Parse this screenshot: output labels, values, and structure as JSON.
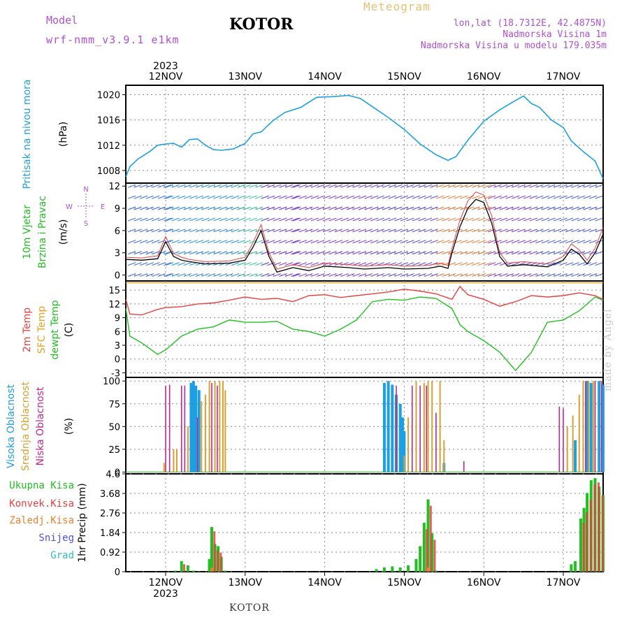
{
  "header": {
    "model_label": "Model",
    "model_version": "wrf-nmm_v3.9.1 e1km",
    "title": "KOTOR",
    "meteogram_label": "Meteogram",
    "lonlat": "lon,lat (18.7312E, 42.4875N)",
    "elevation": "Nadmorska Visina 1m",
    "model_elevation": "Nadmorska Visina u modelu 179.035m"
  },
  "footer": {
    "title": "KOTOR",
    "credit": "made by Angel"
  },
  "x_axis": {
    "year_label": "2023",
    "day_labels": [
      "12NOV",
      "13NOV",
      "14NOV",
      "15NOV",
      "16NOV",
      "17NOV"
    ]
  },
  "colors": {
    "pressure": "#1ea0e0",
    "temp_2m": "#e84040",
    "temp_sfc": "#e8a020",
    "dewpoint": "#20c020",
    "cloud_high": "#1ea0e0",
    "cloud_mid": "#d8a030",
    "cloud_low": "#c02890",
    "precip_total": "#20c020",
    "precip_conv": "#e84040",
    "wind_speed_line": "#000000",
    "wind_gust": "#e84040"
  },
  "chart_data": [
    {
      "type": "line",
      "panel": "pressure",
      "ylabel_main": "Pritisak na nivou mora",
      "ylabel_unit": "(hPa)",
      "ylim": [
        1006,
        1021.5
      ],
      "yticks": [
        "1008",
        "1012",
        "1016",
        "1020"
      ],
      "x_days": [
        -0.5,
        -0.45,
        -0.35,
        -0.2,
        -0.1,
        0.0,
        0.1,
        0.2,
        0.3,
        0.4,
        0.5,
        0.6,
        0.7,
        0.85,
        1.0,
        1.1,
        1.2,
        1.35,
        1.5,
        1.7,
        1.9,
        2.1,
        2.3,
        2.45,
        2.6,
        2.8,
        3.0,
        3.2,
        3.4,
        3.55,
        3.65,
        3.8,
        4.0,
        4.2,
        4.4,
        4.5,
        4.6,
        4.7,
        4.85,
        5.0,
        5.1,
        5.25,
        5.4,
        5.5
      ],
      "series": [
        {
          "values": [
            1007.0,
            1008.6,
            1009.8,
            1011.0,
            1012.0,
            1012.2,
            1012.3,
            1011.7,
            1012.9,
            1013.0,
            1012.0,
            1011.3,
            1011.2,
            1011.4,
            1012.3,
            1013.8,
            1014.1,
            1015.9,
            1017.2,
            1018.0,
            1019.6,
            1019.7,
            1019.9,
            1019.4,
            1018.1,
            1016.4,
            1014.5,
            1012.2,
            1010.5,
            1009.6,
            1010.2,
            1012.8,
            1015.8,
            1017.6,
            1019.1,
            1019.8,
            1018.6,
            1018.0,
            1016.0,
            1014.8,
            1012.7,
            1011.0,
            1009.5,
            1006.7
          ]
        }
      ]
    },
    {
      "type": "line",
      "panel": "wind",
      "ylabel_main": "10m Vjetar",
      "ylabel_sub": "Brzina i Pravac",
      "ylabel_unit": "(m/s)",
      "compass": {
        "n": "N",
        "w": "W",
        "e": "E",
        "s": "S"
      },
      "ylim": [
        -0.8,
        12.4
      ],
      "yticks": [
        "0",
        "3",
        "6",
        "9",
        "12"
      ],
      "x_days": [
        -0.5,
        -0.3,
        -0.1,
        0.0,
        0.1,
        0.2,
        0.3,
        0.5,
        0.8,
        1.0,
        1.1,
        1.2,
        1.3,
        1.4,
        1.6,
        1.8,
        2.0,
        2.3,
        2.5,
        2.8,
        3.0,
        3.3,
        3.45,
        3.55,
        3.6,
        3.7,
        3.8,
        3.9,
        4.0,
        4.1,
        4.2,
        4.3,
        4.5,
        4.8,
        5.0,
        5.1,
        5.2,
        5.3,
        5.4,
        5.5
      ],
      "series": [
        {
          "values": [
            2.1,
            2.0,
            2.2,
            4.5,
            2.5,
            2.0,
            1.8,
            1.5,
            1.6,
            2.0,
            3.8,
            6.0,
            2.5,
            0.4,
            1.0,
            0.6,
            1.2,
            1.0,
            0.8,
            1.0,
            0.8,
            0.9,
            1.2,
            0.9,
            3.0,
            6.5,
            9.0,
            10.2,
            9.8,
            7.0,
            2.5,
            1.2,
            1.4,
            1.1,
            2.0,
            3.5,
            2.8,
            1.5,
            3.0,
            5.5
          ]
        },
        {
          "values": [
            2.4,
            2.3,
            2.6,
            5.2,
            2.9,
            2.4,
            2.1,
            1.8,
            1.9,
            2.4,
            4.4,
            6.8,
            3.0,
            0.8,
            1.4,
            1.0,
            1.6,
            1.4,
            1.2,
            1.4,
            1.2,
            1.3,
            1.6,
            1.3,
            3.6,
            7.4,
            10.0,
            11.2,
            10.8,
            8.0,
            3.0,
            1.6,
            1.8,
            1.5,
            2.5,
            4.2,
            3.4,
            2.0,
            3.6,
            6.4
          ]
        }
      ]
    },
    {
      "type": "line",
      "panel": "temperature",
      "ylabel_a": "2m Temp",
      "ylabel_b": "SFC Temp",
      "ylabel_c": "dewpt Temp",
      "ylabel_unit": "(C)",
      "ylim": [
        -4,
        17
      ],
      "yticks": [
        "-3",
        "0",
        "3",
        "6",
        "9",
        "12",
        "15"
      ],
      "x_days": [
        -0.5,
        -0.45,
        -0.3,
        -0.1,
        0.0,
        0.2,
        0.4,
        0.6,
        0.8,
        1.0,
        1.2,
        1.4,
        1.6,
        1.8,
        2.0,
        2.2,
        2.4,
        2.6,
        2.8,
        3.0,
        3.2,
        3.4,
        3.6,
        3.7,
        3.8,
        4.0,
        4.2,
        4.4,
        4.6,
        4.8,
        5.0,
        5.2,
        5.4,
        5.5
      ],
      "series": [
        {
          "name": "2m Temp",
          "values": [
            13.0,
            9.8,
            9.6,
            10.8,
            11.2,
            11.4,
            12.0,
            12.2,
            12.8,
            13.5,
            13.0,
            13.2,
            12.5,
            13.8,
            14.0,
            13.4,
            13.8,
            14.2,
            14.6,
            15.2,
            14.8,
            14.2,
            13.0,
            15.8,
            14.0,
            13.0,
            11.5,
            12.5,
            13.8,
            13.5,
            13.8,
            14.4,
            13.8,
            13.0
          ]
        },
        {
          "name": "SFC Temp",
          "values": [
            16.6,
            16.6,
            16.6,
            16.6,
            16.6,
            16.6,
            16.6,
            16.6,
            16.6,
            16.6,
            16.6,
            16.6,
            16.6,
            16.6,
            16.6,
            16.6,
            16.6,
            16.6,
            16.6,
            16.6,
            16.6,
            16.6,
            16.6,
            16.6,
            16.6,
            16.6,
            16.6,
            16.6,
            16.6,
            16.6,
            16.6,
            16.6,
            16.6,
            16.6
          ]
        },
        {
          "name": "dewpt Temp",
          "values": [
            11.0,
            5.0,
            3.5,
            1.0,
            2.0,
            5.0,
            6.5,
            7.0,
            8.5,
            8.0,
            8.0,
            8.2,
            6.5,
            6.0,
            5.0,
            6.5,
            8.5,
            12.5,
            13.0,
            12.8,
            13.5,
            13.2,
            11.0,
            7.5,
            6.0,
            4.0,
            1.5,
            -2.5,
            1.5,
            8.0,
            8.5,
            10.5,
            13.5,
            12.8
          ]
        }
      ]
    },
    {
      "type": "bar",
      "panel": "clouds",
      "ylabel_a": "Visoka Oblacnost",
      "ylabel_b": "Srednja Oblacnost",
      "ylabel_c": "Niska Oblacnost",
      "ylabel_unit": "(%)",
      "ylim": [
        0,
        100
      ],
      "yticks": [
        "0",
        "25",
        "50",
        "75",
        "100"
      ],
      "series": [
        {
          "name": "Visoka Oblacnost",
          "x_days": [
            0.32,
            0.35,
            0.38,
            0.42,
            2.75,
            2.8,
            2.85,
            2.9,
            2.95,
            2.98,
            3.0,
            3.5,
            5.15,
            5.3,
            5.35,
            5.45,
            5.5
          ],
          "values": [
            98,
            100,
            95,
            90,
            98,
            100,
            96,
            85,
            75,
            60,
            45,
            10,
            35,
            100,
            98,
            100,
            96
          ]
        },
        {
          "name": "Srednja Oblacnost",
          "x_days": [
            -0.02,
            0.1,
            0.14,
            0.28,
            0.45,
            0.5,
            0.55,
            0.62,
            0.68,
            0.72,
            0.75,
            3.0,
            3.05,
            3.15,
            3.25,
            3.3,
            3.35,
            3.45,
            3.5,
            5.05,
            5.12,
            5.2,
            5.25,
            5.32,
            5.38
          ],
          "values": [
            10,
            25,
            25,
            50,
            78,
            85,
            100,
            100,
            100,
            100,
            90,
            18,
            60,
            100,
            98,
            100,
            100,
            100,
            35,
            50,
            62,
            85,
            100,
            100,
            100
          ]
        },
        {
          "name": "Niska Oblacnost",
          "x_days": [
            0.0,
            0.05,
            0.2,
            0.24,
            0.4,
            0.58,
            0.65,
            2.9,
            3.1,
            3.2,
            3.28,
            3.4,
            3.75,
            4.95,
            5.0,
            5.28,
            5.4,
            5.48
          ],
          "values": [
            95,
            96,
            95,
            95,
            60,
            98,
            95,
            95,
            95,
            95,
            95,
            65,
            12,
            72,
            70,
            100,
            100,
            100
          ]
        }
      ]
    },
    {
      "type": "bar",
      "panel": "precipitation",
      "legend": [
        "Ukupna Kisa",
        "Konvek.Kisa",
        "Zaledj.Kisa",
        "Snijeg",
        "Grad"
      ],
      "legend_colors": [
        "#20c020",
        "#e84040",
        "#f08030",
        "#5050e0",
        "#30c0c0"
      ],
      "ylabel_unit": "1hr Precip (mm)",
      "ylim": [
        0,
        4.6
      ],
      "yticks": [
        "0",
        "0.92",
        "1.84",
        "2.76",
        "3.68",
        "4.6"
      ],
      "series": [
        {
          "name": "Ukupna Kisa",
          "x_days": [
            0.12,
            0.2,
            0.28,
            0.35,
            0.42,
            0.55,
            0.58,
            0.62,
            0.66,
            0.7,
            0.75,
            2.65,
            2.75,
            2.85,
            2.95,
            3.05,
            3.15,
            3.2,
            3.25,
            3.3,
            3.35,
            3.4,
            5.1,
            5.15,
            5.22,
            5.26,
            5.3,
            5.35,
            5.4,
            5.45,
            5.5
          ],
          "values": [
            0.05,
            0.5,
            0.3,
            0.05,
            0.02,
            0.6,
            2.1,
            1.3,
            1.2,
            0.7,
            0.05,
            0.12,
            0.2,
            0.25,
            0.2,
            0.3,
            0.6,
            1.2,
            2.3,
            3.4,
            1.8,
            0.05,
            0.35,
            0.5,
            2.5,
            3.0,
            3.7,
            4.3,
            4.4,
            4.0,
            3.6
          ]
        },
        {
          "name": "Konvek.Kisa",
          "x_days": [
            0.22,
            0.6,
            0.64,
            0.68,
            3.27,
            3.32,
            3.37,
            5.24,
            5.28,
            5.33,
            5.38,
            5.43,
            5.48
          ],
          "values": [
            0.35,
            1.9,
            1.0,
            0.9,
            2.0,
            3.1,
            1.5,
            2.3,
            2.8,
            3.4,
            4.1,
            4.2,
            3.6
          ]
        },
        {
          "name": "Zaledj.Kisa",
          "x_days": [
            0.58,
            3.3
          ],
          "values": [
            0.2,
            0.2
          ]
        }
      ]
    }
  ]
}
